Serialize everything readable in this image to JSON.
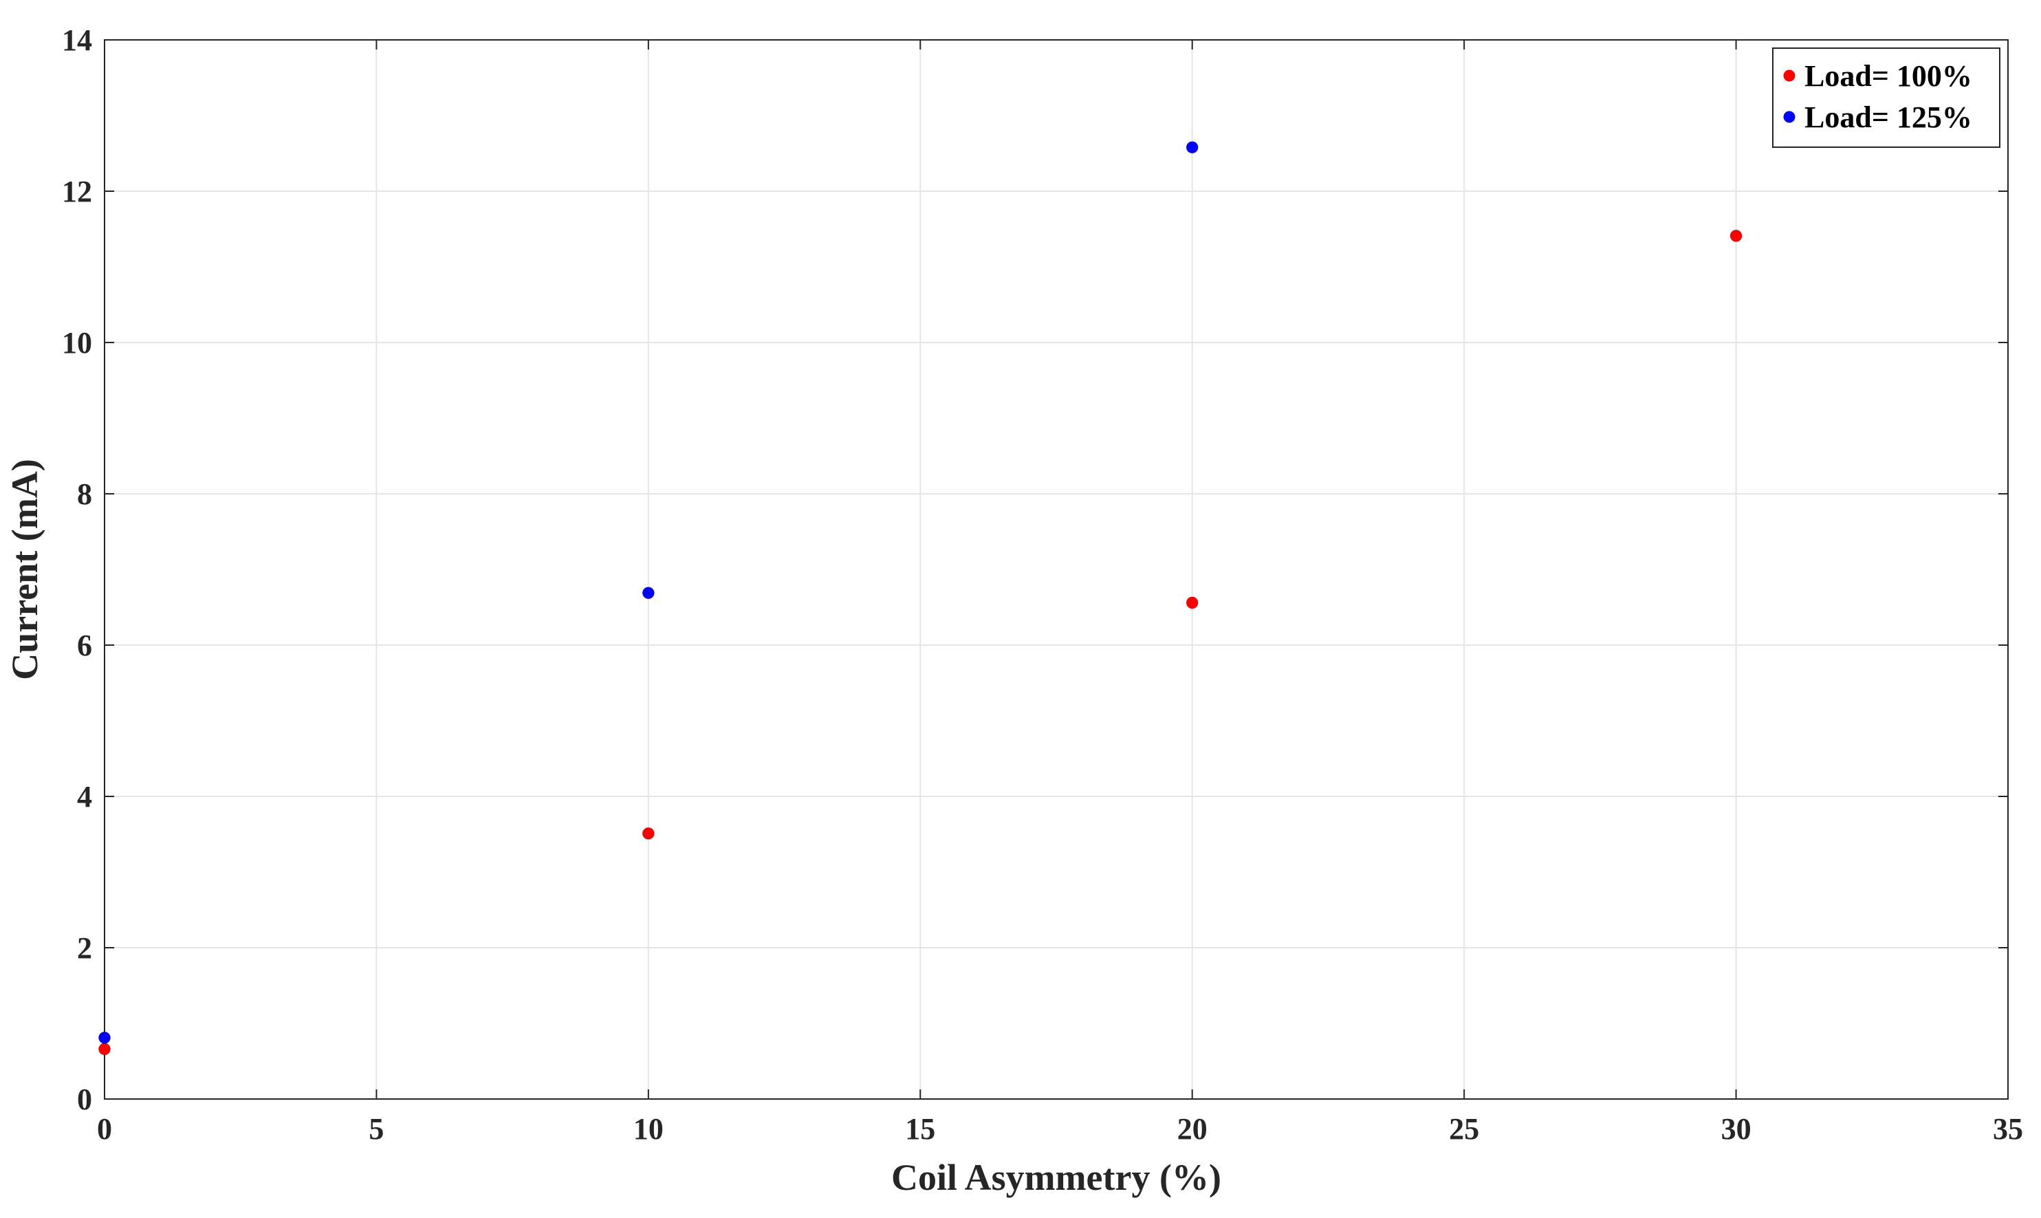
{
  "chart_data": {
    "type": "scatter",
    "title": "",
    "xlabel": "Coil Asymmetry (%)",
    "ylabel": "Current (mA)",
    "xlim": [
      0,
      35
    ],
    "ylim": [
      0,
      14
    ],
    "xticks": [
      0,
      5,
      10,
      15,
      20,
      25,
      30,
      35
    ],
    "yticks": [
      0,
      2,
      4,
      6,
      8,
      10,
      12,
      14
    ],
    "grid": true,
    "legend_position": "top-right",
    "series": [
      {
        "name": "Load= 100%",
        "color": "#ff0000",
        "points": [
          {
            "x": 0,
            "y": 0.66
          },
          {
            "x": 10,
            "y": 3.51
          },
          {
            "x": 20,
            "y": 6.56
          },
          {
            "x": 30,
            "y": 11.41
          }
        ]
      },
      {
        "name": "Load= 125%",
        "color": "#0000ff",
        "points": [
          {
            "x": 0,
            "y": 0.81
          },
          {
            "x": 10,
            "y": 6.69
          },
          {
            "x": 20,
            "y": 12.58
          }
        ]
      }
    ]
  }
}
